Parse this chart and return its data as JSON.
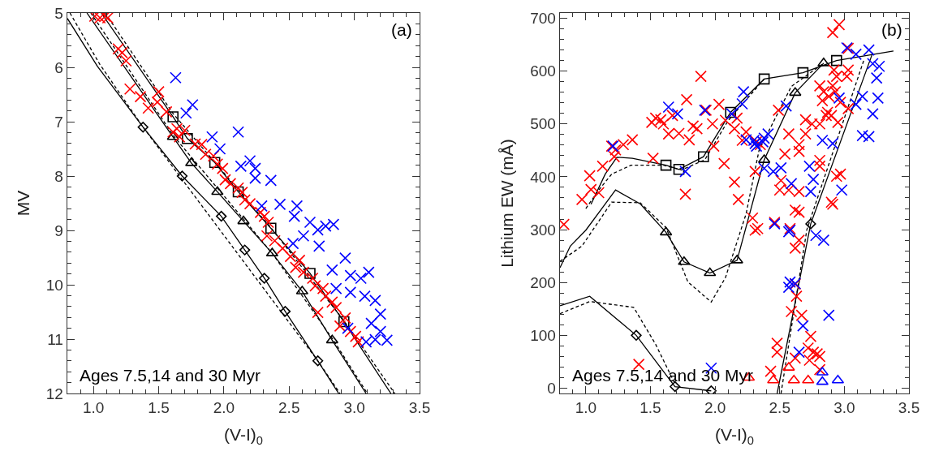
{
  "chart_data": [
    {
      "type": "scatter",
      "xlabel": "(V-I)$_{0}$",
      "ylabel": "MV",
      "annotations": [
        "(a)",
        "Ages 7.5,14 and 30 Myr"
      ],
      "xlim": [
        0.8,
        3.5
      ],
      "ylim": [
        12,
        5
      ],
      "xticks": [
        {
          "value": 1,
          "label": "1.0"
        },
        {
          "value": 1.5,
          "label": "1.5"
        },
        {
          "value": 2,
          "label": "2.0"
        },
        {
          "value": 2.5,
          "label": "2.5"
        },
        {
          "value": 3,
          "label": "3.0"
        },
        {
          "value": 3.5,
          "label": "3.5"
        }
      ],
      "yticks": [
        5,
        6,
        7,
        8,
        9,
        10,
        11,
        12
      ],
      "series": [
        {
          "type": "line",
          "color": "#000000",
          "line_style": "solid",
          "x": [
            1.06,
            1.61,
            1.72,
            1.93,
            2.11,
            2.36,
            2.66,
            2.92,
            3.28
          ],
          "values": [
            5.0,
            6.91,
            7.31,
            7.75,
            8.29,
            8.96,
            9.79,
            10.68,
            12.0
          ]
        },
        {
          "type": "line",
          "color": "#000000",
          "line_style": "solid",
          "x": [
            0.95,
            1.61,
            1.75,
            1.95,
            2.15,
            2.37,
            2.6,
            2.83,
            3.09
          ],
          "values": [
            5.0,
            7.28,
            7.76,
            8.29,
            8.83,
            9.42,
            10.12,
            11.02,
            12.0
          ]
        },
        {
          "type": "line",
          "color": "#000000",
          "line_style": "solid",
          "x": [
            0.8,
            1.03,
            1.38,
            1.68,
            1.98,
            2.16,
            2.31,
            2.47,
            2.72,
            2.88
          ],
          "values": [
            5.1,
            5.98,
            7.1,
            8.0,
            8.74,
            9.36,
            9.88,
            10.49,
            11.4,
            12.0
          ]
        },
        {
          "type": "line",
          "color": "#000000",
          "line_style": "dashed",
          "x": [
            1.09,
            1.61,
            2.36,
            2.92,
            3.31
          ],
          "values": [
            5.0,
            6.85,
            8.95,
            10.66,
            12.0
          ]
        },
        {
          "type": "line",
          "color": "#000000",
          "line_style": "dashed",
          "x": [
            0.98,
            1.62,
            2.37,
            2.84,
            3.1
          ],
          "values": [
            5.0,
            7.28,
            9.42,
            11.02,
            12.0
          ]
        },
        {
          "type": "line",
          "color": "#000000",
          "line_style": "dashed",
          "x": [
            0.82,
            1.05,
            1.38,
            2.72,
            2.89
          ],
          "values": [
            5.0,
            5.95,
            7.1,
            11.4,
            12.0
          ]
        },
        {
          "type": "scatter",
          "marker": "square",
          "color": "#000000",
          "x": [
            1.61,
            1.72,
            1.93,
            2.11,
            2.36,
            2.66,
            2.92
          ],
          "values": [
            6.91,
            7.31,
            7.75,
            8.29,
            8.96,
            9.79,
            10.68
          ]
        },
        {
          "type": "scatter",
          "marker": "triangle",
          "color": "#000000",
          "x": [
            1.61,
            1.75,
            1.95,
            2.15,
            2.37,
            2.6,
            2.83
          ],
          "values": [
            7.28,
            7.76,
            8.29,
            8.83,
            9.42,
            10.12,
            11.02
          ]
        },
        {
          "type": "scatter",
          "marker": "diamond",
          "color": "#000000",
          "x": [
            1.38,
            1.68,
            1.98,
            2.16,
            2.31,
            2.47,
            2.72
          ],
          "values": [
            7.1,
            8.0,
            8.74,
            9.36,
            9.88,
            10.49,
            11.4
          ]
        },
        {
          "type": "scatter",
          "marker": "cross",
          "color": "#ff0000",
          "x": [
            1.01,
            1.05,
            1.09,
            1.11,
            1.19,
            1.22,
            1.25,
            1.28,
            1.36,
            1.42,
            1.5,
            1.49,
            1.56,
            1.61,
            1.64,
            1.7,
            1.66,
            1.78,
            1.83,
            1.86,
            1.92,
            1.95,
            1.99,
            2.01,
            2.05,
            2.11,
            2.14,
            2.16,
            2.2,
            2.28,
            2.31,
            2.34,
            2.33,
            2.39,
            2.45,
            2.51,
            2.58,
            2.55,
            2.61,
            2.68,
            2.7,
            2.76,
            2.78,
            2.72,
            2.83,
            2.86,
            2.93,
            2.89,
            2.97,
            3.01,
            3.03
          ],
          "values": [
            5.06,
            5.09,
            5.06,
            5.09,
            5.66,
            5.73,
            5.88,
            6.4,
            6.54,
            6.75,
            6.45,
            6.64,
            6.82,
            7.19,
            7.13,
            7.16,
            7.28,
            7.41,
            7.42,
            7.6,
            7.63,
            7.78,
            7.86,
            8.07,
            8.14,
            8.22,
            8.3,
            8.44,
            8.51,
            8.67,
            8.74,
            8.85,
            9.1,
            9.19,
            9.33,
            9.48,
            9.55,
            9.68,
            9.77,
            9.88,
            10.02,
            10.07,
            10.21,
            10.51,
            10.32,
            10.42,
            10.61,
            10.76,
            10.86,
            10.95,
            11.05
          ]
        },
        {
          "type": "scatter",
          "marker": "cross",
          "color": "#0000ff",
          "x": [
            1.63,
            1.76,
            1.71,
            1.91,
            2.11,
            1.97,
            2.2,
            2.13,
            2.24,
            2.24,
            2.36,
            2.43,
            2.29,
            2.56,
            2.54,
            2.66,
            2.78,
            2.84,
            2.72,
            2.61,
            2.53,
            2.73,
            2.93,
            2.83,
            2.97,
            3.11,
            3.05,
            2.86,
            2.97,
            3.08,
            3.16,
            3.2,
            3.13,
            2.95,
            3.2,
            3.16,
            3.25,
            3.09
          ],
          "values": [
            6.19,
            6.69,
            6.84,
            7.28,
            7.19,
            7.5,
            7.72,
            7.82,
            7.86,
            8.04,
            8.08,
            8.52,
            8.55,
            8.55,
            8.74,
            8.85,
            8.92,
            8.89,
            8.99,
            9.1,
            9.24,
            9.29,
            9.51,
            9.73,
            9.83,
            9.77,
            9.88,
            10.07,
            10.14,
            10.21,
            10.29,
            10.54,
            10.71,
            10.8,
            10.86,
            11.01,
            11.02,
            11.05
          ]
        }
      ]
    },
    {
      "type": "scatter",
      "xlabel": "(V-I)$_{0}$",
      "ylabel": "Lithium EW (mÅ)",
      "annotations": [
        "(b)",
        "Ages 7.5,14 and 30 Myr"
      ],
      "xlim": [
        0.8,
        3.5
      ],
      "ylim": [
        -10,
        710
      ],
      "xticks": [
        {
          "value": 1,
          "label": "1.0"
        },
        {
          "value": 1.5,
          "label": "1.5"
        },
        {
          "value": 2,
          "label": "2.0"
        },
        {
          "value": 2.5,
          "label": "2.5"
        },
        {
          "value": 3,
          "label": "3.0"
        },
        {
          "value": 3.5,
          "label": "3.5"
        }
      ],
      "yticks": [
        0,
        100,
        200,
        300,
        400,
        500,
        600,
        700
      ],
      "series": [
        {
          "type": "line",
          "color": "#000000",
          "line_style": "solid",
          "x": [
            1.04,
            1.15,
            1.24,
            1.36,
            1.62,
            1.72,
            1.91,
            2.12,
            2.38,
            2.68,
            2.94,
            3.38
          ],
          "values": [
            348,
            405,
            437,
            435,
            422,
            414,
            438,
            522,
            585,
            597,
            620,
            638
          ]
        },
        {
          "type": "line",
          "color": "#000000",
          "line_style": "solid",
          "x": [
            0.8,
            0.88,
            1.0,
            1.23,
            1.42,
            1.62,
            1.76,
            1.96,
            2.17,
            2.38,
            2.62,
            2.84
          ],
          "values": [
            228,
            269,
            299,
            375,
            349,
            295,
            239,
            218,
            242,
            432,
            559,
            615
          ]
        },
        {
          "type": "line",
          "color": "#000000",
          "line_style": "solid",
          "x": [
            0.8,
            1.03,
            1.39,
            1.69,
            1.97,
            2.2,
            2.48,
            2.74,
            3.22
          ],
          "values": [
            156,
            174,
            100,
            3,
            -5,
            null,
            -10,
            311,
            635
          ]
        },
        {
          "type": "line",
          "color": "#000000",
          "line_style": "dashed",
          "x": [
            1.0,
            1.1,
            1.2,
            1.35,
            1.6,
            1.74,
            1.92,
            2.1,
            2.38
          ],
          "values": [
            340,
            375,
            405,
            422,
            422,
            413,
            432,
            506,
            585
          ]
        },
        {
          "type": "line",
          "color": "#000000",
          "line_style": "dashed",
          "x": [
            0.8,
            0.97,
            1.2,
            1.42,
            1.62,
            1.79,
            1.97,
            2.08,
            2.24,
            2.34,
            2.59,
            2.84
          ],
          "values": [
            240,
            269,
            352,
            351,
            304,
            201,
            163,
            209,
            330,
            450,
            571,
            615
          ]
        },
        {
          "type": "line",
          "color": "#000000",
          "line_style": "dashed",
          "x": [
            0.8,
            1.03,
            1.37,
            1.54,
            1.69,
            2.1,
            2.51,
            2.71,
            3.15
          ],
          "values": [
            141,
            164,
            153,
            83,
            8,
            null,
            -10,
            300,
            620
          ]
        },
        {
          "type": "scatter",
          "marker": "square",
          "color": "#000000",
          "x": [
            1.62,
            1.72,
            1.91,
            2.12,
            2.38,
            2.68,
            2.94
          ],
          "values": [
            422,
            414,
            438,
            522,
            585,
            597,
            620
          ]
        },
        {
          "type": "scatter",
          "marker": "triangle",
          "color": "#000000",
          "x": [
            1.62,
            1.76,
            1.96,
            2.17,
            2.38,
            2.62,
            2.84
          ],
          "values": [
            295,
            239,
            218,
            242,
            432,
            559,
            615
          ]
        },
        {
          "type": "scatter",
          "marker": "diamond",
          "color": "#000000",
          "x": [
            1.39,
            1.69,
            1.97,
            2.74
          ],
          "values": [
            100,
            3,
            -5,
            311
          ]
        },
        {
          "type": "scatter",
          "marker": "cross",
          "color": "#ff0000",
          "x": [
            0.83,
            0.97,
            1.03,
            1.04,
            1.1,
            1.13,
            1.2,
            1.23,
            1.22,
            1.29,
            1.36,
            1.52,
            1.51,
            1.54,
            1.58,
            1.6,
            1.64,
            1.67,
            1.72,
            1.78,
            1.8,
            1.83,
            1.86,
            1.89,
            1.93,
            1.77,
            1.98,
            1.99,
            2.03,
            2.07,
            2.08,
            2.15,
            2.18,
            2.15,
            2.17,
            2.21,
            2.24,
            2.29,
            2.31,
            2.32,
            2.35,
            2.96,
            2.91,
            3.03,
            2.92,
            3.03,
            2.94,
            3.02,
            2.81,
            2.91,
            2.84,
            2.93,
            2.88,
            2.97,
            2.83,
            2.87,
            3.03,
            2.86,
            2.9,
            2.95,
            2.81,
            2.75,
            2.7,
            2.49,
            2.57,
            2.7,
            2.65,
            2.65,
            2.54,
            2.81,
            2.81,
            2.51,
            2.5,
            2.57,
            2.65,
            2.94,
            2.97,
            2.9,
            2.91,
            2.62,
            2.65,
            2.46,
            2.33,
            2.58,
            2.65,
            2.31,
            2.62,
            2.62,
            2.63,
            2.59,
            2.67,
            2.74,
            2.48,
            2.48,
            2.72,
            2.62,
            2.76,
            2.79,
            2.81,
            2.73,
            2.81,
            2.43,
            1.41
          ],
          "values": [
            310,
            357,
            402,
            376,
            370,
            420,
            458,
            451,
            438,
            461,
            470,
            435,
            503,
            511,
            508,
            500,
            481,
            516,
            482,
            546,
            470,
            496,
            491,
            590,
            526,
            367,
            500,
            458,
            537,
            425,
            507,
            390,
            357,
            491,
            511,
            469,
            485,
            322,
            410,
            466,
            461,
            688,
            673,
            643,
            602,
            602,
            590,
            590,
            572,
            572,
            561,
            561,
            552,
            541,
            544,
            522,
            529,
            516,
            516,
            503,
            500,
            500,
            508,
            526,
            481,
            481,
            461,
            448,
            443,
            431,
            420,
            393,
            375,
            375,
            372,
            401,
            405,
            352,
            348,
            337,
            333,
            314,
            302,
            302,
            280,
            299,
            265,
            197,
            174,
            145,
            138,
            98,
            85,
            68,
            76,
            57,
            68,
            65,
            60,
            53,
            35,
            32,
            45
          ]
        },
        {
          "type": "scatter",
          "marker": "cross",
          "color": "#0000ff",
          "x": [
            1.21,
            1.64,
            1.71,
            1.77,
            1.92,
            2.13,
            2.22,
            2.21,
            2.24,
            2.3,
            2.32,
            2.37,
            3.02,
            3.09,
            3.19,
            3.22,
            3.27,
            3.25,
            3.14,
            3.09,
            2.96,
            3.26,
            3.22,
            3.14,
            3.19,
            2.55,
            2.41,
            2.31,
            2.38,
            2.83,
            2.91,
            2.38,
            2.45,
            2.51,
            2.73,
            2.76,
            2.59,
            2.74,
            2.98,
            2.46,
            2.58,
            2.78,
            2.84,
            2.57,
            2.58,
            2.62,
            2.57,
            2.68,
            2.88,
            2.65,
            1.97
          ],
          "values": [
            458,
            532,
            519,
            410,
            526,
            519,
            561,
            538,
            470,
            469,
            458,
            466,
            644,
            632,
            640,
            614,
            609,
            587,
            552,
            537,
            549,
            549,
            519,
            478,
            476,
            534,
            481,
            463,
            473,
            469,
            463,
            416,
            410,
            417,
            420,
            395,
            387,
            372,
            375,
            311,
            299,
            289,
            280,
            296,
            201,
            198,
            191,
            118,
            138,
            68,
            38
          ]
        },
        {
          "type": "scatter",
          "marker": "triangle",
          "color": "#ff0000",
          "x": [
            2.26,
            2.45,
            2.61,
            2.72,
            2.57
          ],
          "values": [
            20,
            15,
            15,
            15,
            39
          ]
        },
        {
          "type": "scatter",
          "marker": "triangle",
          "color": "#0000ff",
          "x": [
            2.83,
            2.83,
            2.95
          ],
          "values": [
            30,
            12,
            15
          ]
        }
      ]
    }
  ]
}
